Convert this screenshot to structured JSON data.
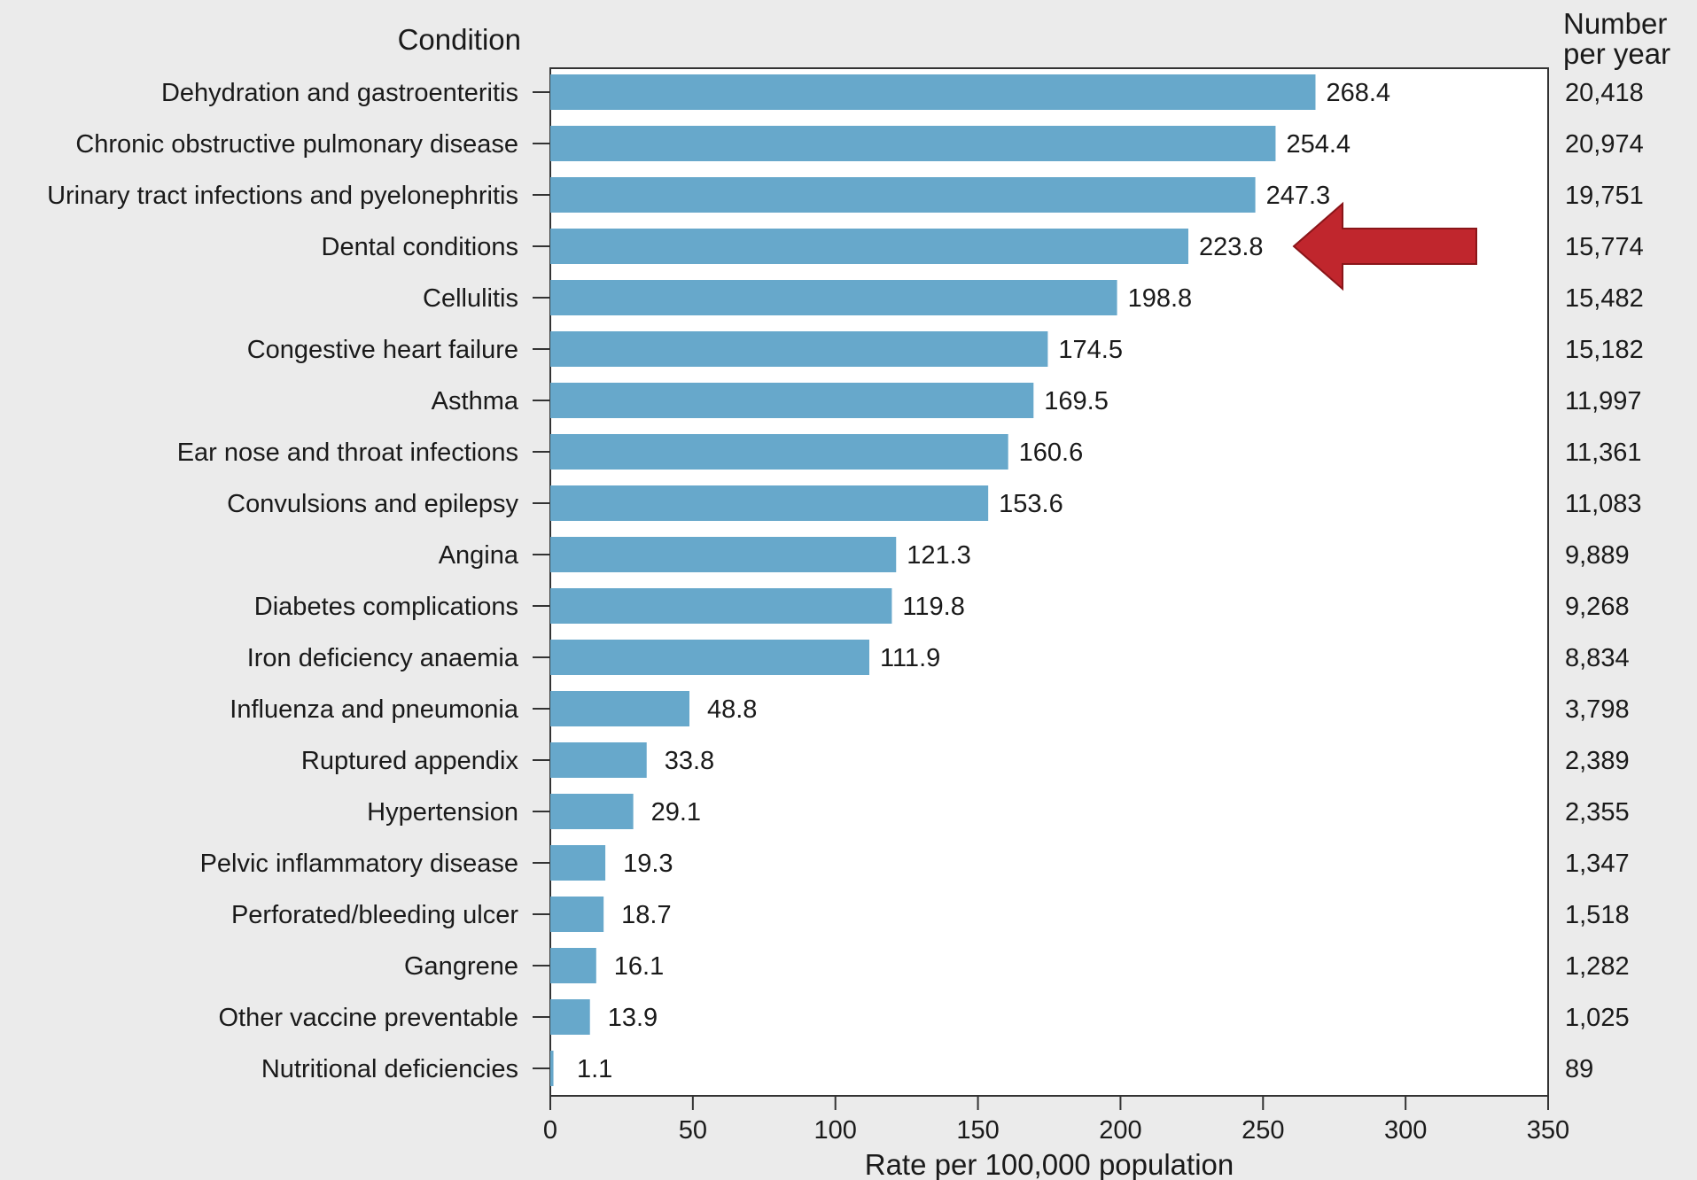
{
  "chart_data": {
    "type": "bar",
    "orientation": "horizontal",
    "category_header": "Condition",
    "count_header_line1": "Number",
    "count_header_line2": "per year",
    "xlabel": "Rate per 100,000 population",
    "xlim": [
      0,
      350
    ],
    "xticks": [
      "0",
      "50",
      "100",
      "150",
      "200",
      "250",
      "300",
      "350"
    ],
    "bar_color": "#67a8cb",
    "highlight_arrow_color": "#c0262d",
    "highlighted_category": "Dental conditions",
    "categories": [
      "Dehydration and gastroenteritis",
      "Chronic obstructive pulmonary disease",
      "Urinary tract infections and pyelonephritis",
      "Dental conditions",
      "Cellulitis",
      "Congestive heart failure",
      "Asthma",
      "Ear nose and throat infections",
      "Convulsions and epilepsy",
      "Angina",
      "Diabetes complications",
      "Iron deficiency anaemia",
      "Influenza and pneumonia",
      "Ruptured appendix",
      "Hypertension",
      "Pelvic inflammatory disease",
      "Perforated/bleeding ulcer",
      "Gangrene",
      "Other vaccine preventable",
      "Nutritional deficiencies"
    ],
    "values": [
      268.4,
      254.4,
      247.3,
      223.8,
      198.8,
      174.5,
      169.5,
      160.6,
      153.6,
      121.3,
      119.8,
      111.9,
      48.8,
      33.8,
      29.1,
      19.3,
      18.7,
      16.1,
      13.9,
      1.1
    ],
    "value_labels": [
      "268.4",
      "254.4",
      "247.3",
      "223.8",
      "198.8",
      "174.5",
      "169.5",
      "160.6",
      "153.6",
      "121.3",
      "119.8",
      "111.9",
      "48.8",
      "33.8",
      "29.1",
      "19.3",
      "18.7",
      "16.1",
      "13.9",
      "1.1"
    ],
    "counts": [
      "20,418",
      "20,974",
      "19,751",
      "15,774",
      "15,482",
      "15,182",
      "11,997",
      "11,361",
      "11,083",
      "9,889",
      "9,268",
      "8,834",
      "3,798",
      "2,389",
      "2,355",
      "1,347",
      "1,518",
      "1,282",
      "1,025",
      "89"
    ]
  }
}
